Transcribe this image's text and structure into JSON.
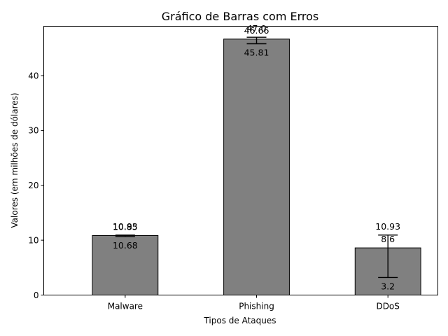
{
  "chart_data": {
    "type": "bar",
    "title": "Gráfico de Barras com Erros",
    "xlabel": "Tipos de Ataques",
    "ylabel": "Valores (em milhões de dólares)",
    "categories": [
      "Malware",
      "Phishing",
      "DDoS"
    ],
    "values": [
      10.85,
      46.66,
      8.6
    ],
    "error_low": [
      10.68,
      45.81,
      3.2
    ],
    "error_high": [
      10.93,
      47.0,
      10.93
    ],
    "value_labels": [
      "10.85",
      "46.66",
      "8.6"
    ],
    "low_labels": [
      "10.68",
      "45.81",
      "3.2"
    ],
    "high_labels": [
      "10.93",
      "47.0",
      "10.93"
    ],
    "yticks": [
      0,
      10,
      20,
      30,
      40
    ],
    "ylim": [
      0,
      49
    ],
    "bar_color": "#808080",
    "edge_color": "#000000",
    "grid": false,
    "legend": false
  }
}
